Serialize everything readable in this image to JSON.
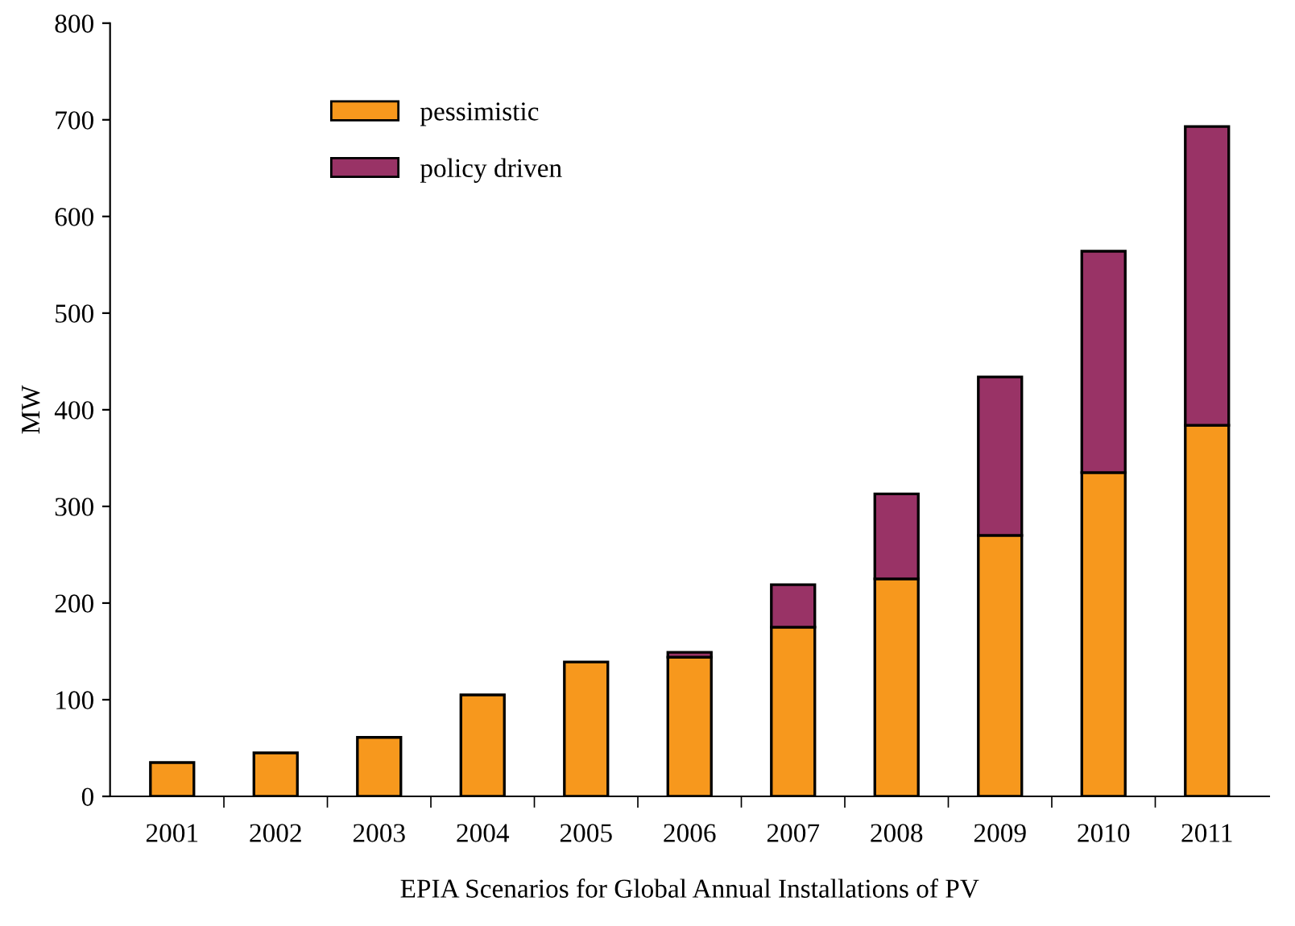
{
  "chart_data": {
    "type": "bar",
    "stacked": true,
    "xlabel": "EPIA Scenarios for Global Annual Installations of PV",
    "ylabel": "MW",
    "categories": [
      "2001",
      "2002",
      "2003",
      "2004",
      "2005",
      "2006",
      "2007",
      "2008",
      "2009",
      "2010",
      "2011"
    ],
    "series": [
      {
        "name": "pessimistic",
        "color": "#f7981d",
        "values": [
          35,
          45,
          61,
          105,
          139,
          144,
          175,
          225,
          270,
          335,
          384
        ]
      },
      {
        "name": "policy driven",
        "color": "#993366",
        "values": [
          null,
          null,
          null,
          null,
          null,
          5,
          44,
          88,
          164,
          229,
          309
        ]
      }
    ],
    "ylim": [
      0,
      800
    ],
    "yticks": [
      0,
      100,
      200,
      300,
      400,
      500,
      600,
      700,
      800
    ],
    "grid": false,
    "legend": "top left"
  }
}
